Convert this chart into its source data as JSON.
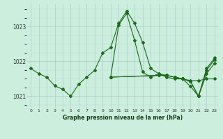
{
  "title": "Graphe pression niveau de la mer (hPa)",
  "bg_color": "#cceedd",
  "grid_major_color": "#aacccc",
  "grid_minor_color": "#bbdddd",
  "line_color": "#1a6b1a",
  "xlim": [
    -0.5,
    23.5
  ],
  "ylim": [
    1020.65,
    1023.65
  ],
  "yticks": [
    1021,
    1022,
    1023
  ],
  "xticks": [
    0,
    1,
    2,
    3,
    4,
    5,
    6,
    7,
    8,
    9,
    10,
    11,
    12,
    13,
    14,
    15,
    16,
    17,
    18,
    19,
    20,
    21,
    22,
    23
  ],
  "line1_x": [
    0,
    1,
    2,
    3,
    4,
    5,
    6,
    7,
    8,
    9,
    10,
    11,
    12,
    13,
    14,
    15,
    16,
    17,
    18,
    19,
    20,
    21,
    22,
    23
  ],
  "line1_y": [
    1021.8,
    1021.65,
    1021.55,
    1021.3,
    1021.2,
    1021.0,
    1021.35,
    1021.55,
    1021.75,
    1022.25,
    1022.4,
    1023.1,
    1023.45,
    1023.1,
    1022.55,
    1021.8,
    1021.65,
    1021.55,
    1021.5,
    1021.5,
    1021.45,
    1021.45,
    1021.5,
    1021.5
  ],
  "line2_x": [
    10,
    11,
    12,
    13,
    14,
    15,
    16,
    17,
    18,
    19,
    20,
    21,
    22,
    23
  ],
  "line2_y": [
    1021.55,
    1023.05,
    1023.38,
    1022.6,
    1021.7,
    1021.55,
    1021.65,
    1021.6,
    1021.55,
    1021.5,
    1021.42,
    1021.0,
    1021.8,
    1022.1
  ],
  "line3_x": [
    10,
    16,
    17,
    18,
    19,
    20,
    21,
    22,
    23
  ],
  "line3_y": [
    1021.55,
    1021.6,
    1021.6,
    1021.55,
    1021.5,
    1021.42,
    1021.0,
    1021.75,
    1022.05
  ],
  "line4_x": [
    10,
    16,
    17,
    18,
    19,
    20,
    21,
    22,
    23
  ],
  "line4_y": [
    1021.55,
    1021.6,
    1021.6,
    1021.55,
    1021.5,
    1021.28,
    1021.0,
    1021.65,
    1021.95
  ]
}
